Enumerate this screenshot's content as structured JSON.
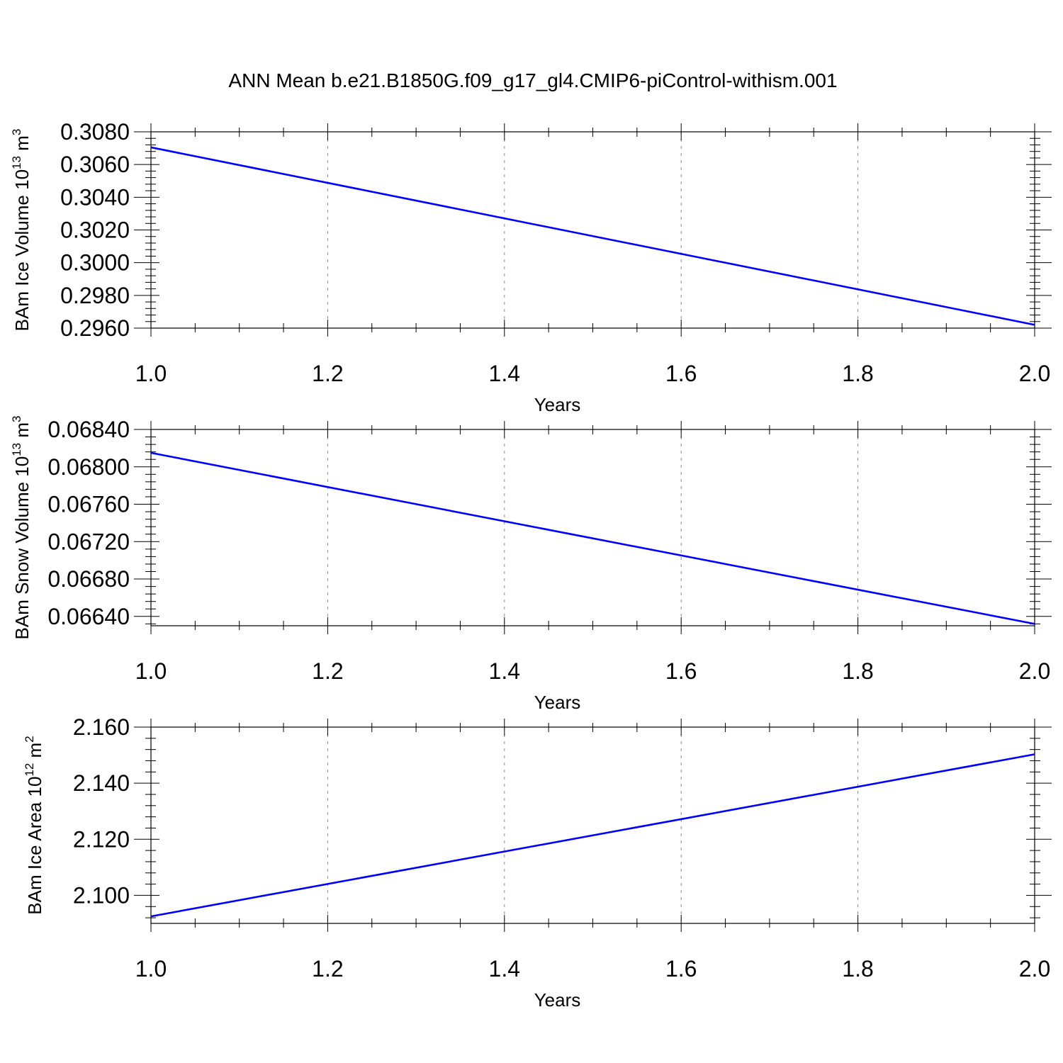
{
  "figure_title": "ANN Mean b.e21.B1850G.f09_g17_gl4.CMIP6-piControl-withism.001",
  "colors": {
    "line": "#0000ff",
    "axis": "#000000",
    "grid": "#888888"
  },
  "chart_data": [
    {
      "type": "line",
      "xlabel": "Years",
      "ylabel": {
        "text": "BAm Ice Volume 10",
        "sup1": "13",
        "unit": " m",
        "sup2": "3"
      },
      "xlim": [
        1.0,
        2.0
      ],
      "ylim": [
        0.296,
        0.308
      ],
      "x_ticks": [
        "1.0",
        "1.2",
        "1.4",
        "1.6",
        "1.8",
        "2.0"
      ],
      "y_ticks": [
        "0.2960",
        "0.2980",
        "0.3000",
        "0.3020",
        "0.3040",
        "0.3060",
        "0.3080"
      ],
      "grid": "vertical-dashed",
      "series": [
        {
          "x": [
            1.0,
            2.0
          ],
          "y": [
            0.30705,
            0.2962
          ]
        }
      ]
    },
    {
      "type": "line",
      "xlabel": "Years",
      "ylabel": {
        "text": "BAm Snow Volume 10",
        "sup1": "13",
        "unit": " m",
        "sup2": "3"
      },
      "xlim": [
        1.0,
        2.0
      ],
      "ylim": [
        0.0663,
        0.0684
      ],
      "x_ticks": [
        "1.0",
        "1.2",
        "1.4",
        "1.6",
        "1.8",
        "2.0"
      ],
      "y_ticks": [
        "0.06640",
        "0.06680",
        "0.06720",
        "0.06760",
        "0.06800",
        "0.06840"
      ],
      "grid": "vertical-dashed",
      "series": [
        {
          "x": [
            1.0,
            2.0
          ],
          "y": [
            0.06815,
            0.06632
          ]
        }
      ]
    },
    {
      "type": "line",
      "xlabel": "Years",
      "ylabel": {
        "text": "BAm Ice Area 10",
        "sup1": "12",
        "unit": " m",
        "sup2": "2"
      },
      "xlim": [
        1.0,
        2.0
      ],
      "ylim": [
        2.09,
        2.16
      ],
      "x_ticks": [
        "1.0",
        "1.2",
        "1.4",
        "1.6",
        "1.8",
        "2.0"
      ],
      "y_ticks": [
        "2.100",
        "2.120",
        "2.140",
        "2.160"
      ],
      "grid": "vertical-dashed",
      "series": [
        {
          "x": [
            1.0,
            2.0
          ],
          "y": [
            2.0925,
            2.1503
          ]
        }
      ]
    }
  ]
}
